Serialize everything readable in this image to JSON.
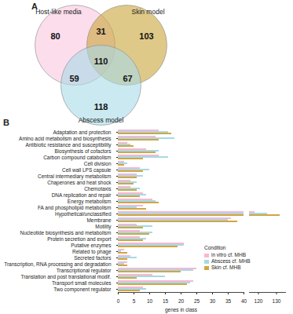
{
  "chart_data": [
    {
      "type": "venn",
      "panel": "A",
      "sets": [
        {
          "name": "Host-like media",
          "color": "#f9c6dd"
        },
        {
          "name": "Skin model",
          "color": "#c9a53a"
        },
        {
          "name": "Abscess model",
          "color": "#a9dbe8"
        }
      ],
      "regions": [
        {
          "sets": [
            "Host-like media"
          ],
          "value": 80
        },
        {
          "sets": [
            "Host-like media",
            "Skin model"
          ],
          "value": 31
        },
        {
          "sets": [
            "Skin model"
          ],
          "value": 103
        },
        {
          "sets": [
            "Host-like media",
            "Abscess model"
          ],
          "value": 59
        },
        {
          "sets": [
            "Host-like media",
            "Skin model",
            "Abscess model"
          ],
          "value": 110
        },
        {
          "sets": [
            "Skin model",
            "Abscess model"
          ],
          "value": 67
        },
        {
          "sets": [
            "Abscess model"
          ],
          "value": 118
        }
      ]
    },
    {
      "type": "bar",
      "panel": "B",
      "orientation": "horizontal",
      "xlabel": "genes in class",
      "legend": "bottom right",
      "legend_title": "Condition",
      "categories": [
        "Adaptation and protection",
        "Amino acid metabolism and biosynthesis",
        "Antibiotic resistance and susceptibility",
        "Biosynthesis of cofactors",
        "Carbon compound catabolism",
        "Cell division",
        "Cell wall LPS capsule",
        "Central intermediary metabolism",
        "Chaperones and heat shock",
        "Chemotaxis",
        "DNA replication and repair",
        "Energy metabolism",
        "FA and phospholipid metabolism",
        "Hypothetical/unclassified",
        "Membrane",
        "Motility",
        "Nucleotide biosynthesis and metabolism",
        "Protein secretion and export",
        "Putative enzymes",
        "Related to phage",
        "Secreted factors",
        "Transcription, RNA processing and degradation",
        "Transcriptional regulator",
        "Translation and post translational modif.",
        "Transport small molecules",
        "Two component regulator"
      ],
      "series": [
        {
          "name": "in vitro cf. MHB",
          "color": "#f7b7d2",
          "values": [
            13,
            12,
            3,
            9,
            13,
            2,
            7,
            6,
            4,
            4,
            8,
            11,
            8,
            118,
            36,
            6,
            7,
            7,
            21,
            2,
            4,
            3,
            25,
            11,
            24,
            8
          ]
        },
        {
          "name": "Abscess cf. MHB",
          "color": "#a6d9e6",
          "values": [
            16,
            18,
            4,
            13,
            16,
            3,
            10,
            8,
            6,
            7,
            9,
            12,
            6,
            125,
            35,
            11,
            11,
            9,
            21,
            1,
            6,
            2,
            24,
            15,
            23,
            9
          ]
        },
        {
          "name": "Skin cf. MHB",
          "color": "#d2a63f",
          "values": [
            17,
            13,
            5,
            12,
            8,
            2,
            8,
            6,
            5,
            6,
            7,
            13,
            9,
            132,
            38,
            8,
            10,
            8,
            19,
            3,
            3,
            3,
            20,
            6,
            22,
            7
          ]
        }
      ],
      "xlim": [
        0,
        135
      ],
      "x_break": [
        40,
        115
      ],
      "xticks": [
        0,
        5,
        10,
        15,
        20,
        25,
        30,
        35,
        40,
        120,
        130
      ]
    }
  ]
}
